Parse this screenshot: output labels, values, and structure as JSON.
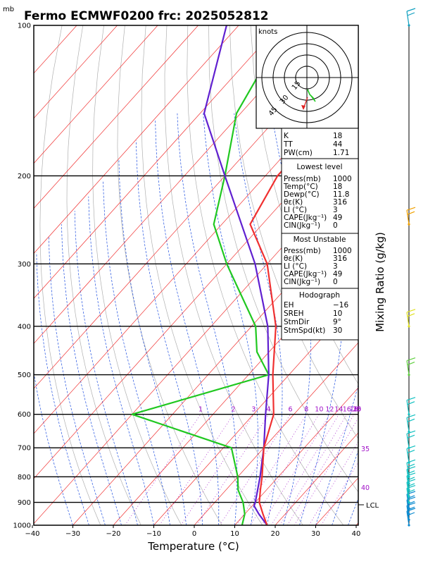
{
  "chart_data": {
    "type": "skew-t",
    "title": "Fermo ECMWF0200  frc: 2025052812",
    "xlabel": "Temperature (°C)",
    "ylabel_left": "mb",
    "ylabel_right": "Mixing Ratio (g/kg)",
    "xticks": [
      -40,
      -30,
      -20,
      -10,
      0,
      10,
      20,
      30,
      40
    ],
    "pressure_levels": [
      100,
      200,
      300,
      400,
      500,
      600,
      700,
      800,
      900,
      1000
    ],
    "mixing_ratio_labels": [
      "1",
      "2",
      "3",
      "4",
      "6",
      "8",
      "10",
      "12",
      "14",
      "16",
      "18",
      "20",
      "25",
      "30"
    ],
    "right_edge_labels": [
      "35",
      "40"
    ],
    "lcl_label": "LCL",
    "temperature": [
      {
        "p": 1000,
        "t": 18
      },
      {
        "p": 950,
        "t": 14.5
      },
      {
        "p": 900,
        "t": 11
      },
      {
        "p": 850,
        "t": 8.5
      },
      {
        "p": 800,
        "t": 6
      },
      {
        "p": 700,
        "t": 0
      },
      {
        "p": 600,
        "t": -5
      },
      {
        "p": 500,
        "t": -14
      },
      {
        "p": 400,
        "t": -24
      },
      {
        "p": 300,
        "t": -40
      },
      {
        "p": 250,
        "t": -53
      },
      {
        "p": 200,
        "t": -57
      },
      {
        "p": 150,
        "t": -57
      },
      {
        "p": 100,
        "t": -58
      }
    ],
    "dewpoint": [
      {
        "p": 1000,
        "t": 11.8
      },
      {
        "p": 950,
        "t": 10
      },
      {
        "p": 900,
        "t": 7
      },
      {
        "p": 850,
        "t": 3
      },
      {
        "p": 800,
        "t": 0
      },
      {
        "p": 700,
        "t": -8
      },
      {
        "p": 600,
        "t": -40
      },
      {
        "p": 500,
        "t": -15
      },
      {
        "p": 450,
        "t": -23
      },
      {
        "p": 400,
        "t": -29
      },
      {
        "p": 300,
        "t": -50
      },
      {
        "p": 250,
        "t": -62
      },
      {
        "p": 200,
        "t": -70
      },
      {
        "p": 150,
        "t": -81
      },
      {
        "p": 100,
        "t": -88
      }
    ],
    "parcel": [
      {
        "p": 1000,
        "t": 18
      },
      {
        "p": 950,
        "t": 13.5
      },
      {
        "p": 915,
        "t": 10.5
      },
      {
        "p": 900,
        "t": 10
      },
      {
        "p": 800,
        "t": 5.5
      },
      {
        "p": 700,
        "t": 0
      },
      {
        "p": 600,
        "t": -7
      },
      {
        "p": 500,
        "t": -15
      },
      {
        "p": 400,
        "t": -26
      },
      {
        "p": 300,
        "t": -43
      },
      {
        "p": 200,
        "t": -70
      },
      {
        "p": 150,
        "t": -89
      },
      {
        "p": 100,
        "t": -103
      }
    ],
    "hodograph": {
      "unit_label": "knots",
      "ring_labels": [
        "15",
        "30",
        "45"
      ]
    },
    "indices": {
      "k": {
        "label": "K",
        "value": "18"
      },
      "tt": {
        "label": "TT",
        "value": "44"
      },
      "pw": {
        "label": "PW(cm)",
        "value": "1.71"
      }
    },
    "lowest_level": {
      "header": "Lowest level",
      "rows": [
        {
          "label": "Press(mb)",
          "value": "1000"
        },
        {
          "label": "Temp(°C)",
          "value": "18"
        },
        {
          "label": "Dewp(°C)",
          "value": "11.8"
        },
        {
          "label": "θε(K)",
          "value": "316"
        },
        {
          "label": "LI (°C)",
          "value": "3"
        },
        {
          "label": "CAPE(Jkg⁻¹)",
          "value": "49"
        },
        {
          "label": "CIN(Jkg⁻¹)",
          "value": "0"
        }
      ]
    },
    "most_unstable": {
      "header": "Most Unstable",
      "rows": [
        {
          "label": "Press(mb)",
          "value": "1000"
        },
        {
          "label": "θε(K)",
          "value": "316"
        },
        {
          "label": "LI (°C)",
          "value": "3"
        },
        {
          "label": "CAPE(Jkg⁻¹)",
          "value": "49"
        },
        {
          "label": "CIN(Jkg⁻¹)",
          "value": "0"
        }
      ]
    },
    "hodograph_params": {
      "header": "Hodograph",
      "rows": [
        {
          "label": "EH",
          "value": "−16"
        },
        {
          "label": "SREH",
          "value": "10"
        },
        {
          "label": "StmDir",
          "value": "9°"
        },
        {
          "label": "StmSpd(kt)",
          "value": "30"
        }
      ]
    },
    "wind_barbs": [
      {
        "p": 1000,
        "color": "#0a8ad0"
      },
      {
        "p": 975,
        "color": "#0a8ad0"
      },
      {
        "p": 950,
        "color": "#0a8ad0"
      },
      {
        "p": 925,
        "color": "#0a8ad0"
      },
      {
        "p": 900,
        "color": "#10c0c0"
      },
      {
        "p": 875,
        "color": "#10c0c0"
      },
      {
        "p": 850,
        "color": "#10c0c0"
      },
      {
        "p": 825,
        "color": "#10c0c0"
      },
      {
        "p": 800,
        "color": "#10c0c0"
      },
      {
        "p": 750,
        "color": "#10c0c0"
      },
      {
        "p": 700,
        "color": "#10c0c0"
      },
      {
        "p": 650,
        "color": "#10c0c0"
      },
      {
        "p": 600,
        "color": "#10c0c0"
      },
      {
        "p": 500,
        "color": "#60d040"
      },
      {
        "p": 400,
        "color": "#e0e020"
      },
      {
        "p": 250,
        "color": "#f0a000"
      },
      {
        "p": 100,
        "color": "#10a0c0"
      }
    ],
    "colors": {
      "temperature": "#f03030",
      "dewpoint": "#20c820",
      "parcel": "#6020d0",
      "isotherm": "#f03030",
      "dry_adiabat": "#b0b0b0",
      "moist_adiabat": "#2050e0",
      "mixing_ratio": "#a010c8"
    }
  }
}
